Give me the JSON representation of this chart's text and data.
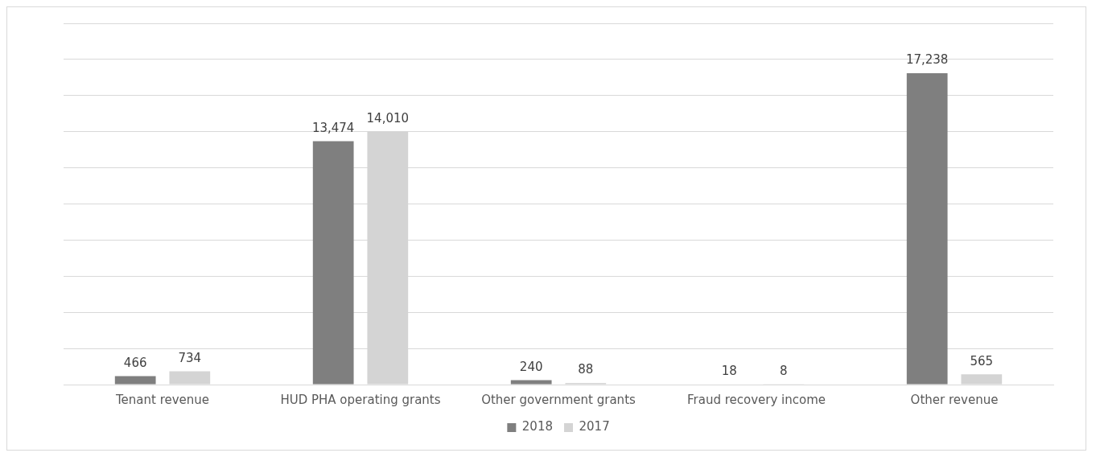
{
  "chart_data": {
    "type": "bar",
    "categories": [
      "Tenant revenue",
      "HUD PHA operating grants",
      "Other government grants",
      "Fraud recovery income",
      "Other revenue"
    ],
    "series": [
      {
        "name": "2018",
        "color": "#7f7f7f",
        "values": [
          466,
          13474,
          240,
          18,
          17238
        ],
        "value_labels": [
          "466",
          "13,474",
          "240",
          "18",
          "17,238"
        ]
      },
      {
        "name": "2017",
        "color": "#d4d4d4",
        "values": [
          734,
          14010,
          88,
          8,
          565
        ],
        "value_labels": [
          "734",
          "14,010",
          "88",
          "8",
          "565"
        ]
      }
    ],
    "ylim": [
      0,
      20000
    ],
    "yticks": [
      {
        "value": 0,
        "label": null
      },
      {
        "value": 2000,
        "label": null
      },
      {
        "value": 4000,
        "label": null
      },
      {
        "value": 6000,
        "label": null
      },
      {
        "value": 8000,
        "label": null
      },
      {
        "value": 10000,
        "label": null
      },
      {
        "value": 12000,
        "label": null
      },
      {
        "value": 14000,
        "label": null
      },
      {
        "value": 16000,
        "label": null
      },
      {
        "value": 18000,
        "label": null
      },
      {
        "value": 20000,
        "label": null
      }
    ],
    "tick_labels": "x",
    "grid": "y",
    "legend": "bottom"
  }
}
